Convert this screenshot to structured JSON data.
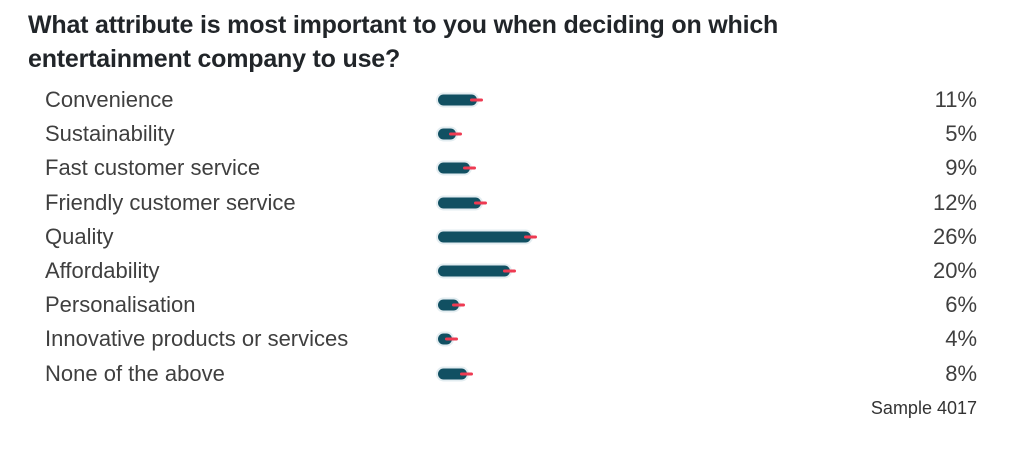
{
  "title": {
    "line1": "What attribute is most important to you when deciding on which",
    "line2": "entertainment company to use?"
  },
  "chart_data": {
    "type": "bar",
    "orientation": "horizontal",
    "title": "What attribute is most important to you when deciding on which entertainment company to use?",
    "categories": [
      "Convenience",
      "Sustainability",
      "Fast customer service",
      "Friendly customer service",
      "Quality",
      "Affordability",
      "Personalisation",
      "Innovative products or services",
      "None of the above"
    ],
    "values": [
      11,
      5,
      9,
      12,
      26,
      20,
      6,
      4,
      8
    ],
    "value_labels": [
      "11%",
      "5%",
      "9%",
      "12%",
      "26%",
      "20%",
      "6%",
      "4%",
      "8%"
    ],
    "unit": "%",
    "xlim": [
      0,
      30
    ],
    "grid": false,
    "legend": false,
    "bar_color": "#115062",
    "marker_color": "#ee3a52",
    "sample_note": "Sample 4017"
  },
  "footer": {
    "sample_label": "Sample 4017"
  },
  "colors": {
    "background": "#ffffff",
    "title_text": "#212529",
    "body_text": "#3f3f3f",
    "bar": "#115062",
    "marker": "#ee3a52"
  }
}
